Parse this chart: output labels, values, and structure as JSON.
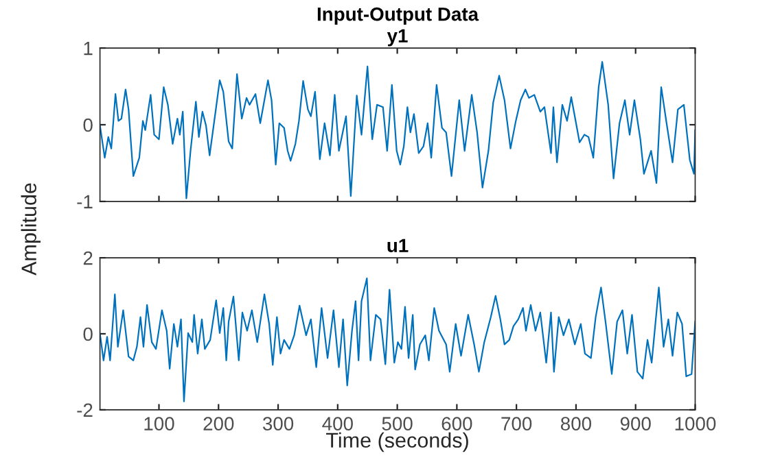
{
  "chart_data": [
    {
      "type": "line",
      "title": "Input-Output Data",
      "subtitle": "y1",
      "ylabel": "Amplitude",
      "xlim": [
        1,
        1000
      ],
      "xticks": [
        100,
        200,
        300,
        400,
        500,
        600,
        700,
        800,
        900,
        1000
      ],
      "ylim": [
        -1,
        1
      ],
      "yticks": [
        -1,
        0,
        1
      ],
      "tick_labels": "y",
      "grid": false,
      "legend": false,
      "series": [
        {
          "color": "#0072bd",
          "x": [
            1,
            9,
            15,
            20,
            27,
            32,
            37,
            44,
            49,
            57,
            67,
            73,
            77,
            86,
            92,
            100,
            108,
            115,
            123,
            131,
            135,
            140,
            146,
            153,
            162,
            167,
            173,
            179,
            185,
            196,
            202,
            208,
            217,
            223,
            231,
            239,
            247,
            252,
            262,
            270,
            283,
            289,
            296,
            302,
            310,
            316,
            321,
            329,
            335,
            342,
            350,
            355,
            362,
            370,
            378,
            387,
            395,
            402,
            414,
            422,
            432,
            440,
            450,
            458,
            466,
            476,
            483,
            491,
            499,
            505,
            511,
            517,
            522,
            528,
            536,
            544,
            551,
            557,
            566,
            575,
            582,
            591,
            604,
            613,
            625,
            634,
            643,
            653,
            661,
            671,
            680,
            690,
            699,
            707,
            715,
            721,
            730,
            740,
            747,
            758,
            762,
            768,
            777,
            785,
            792,
            806,
            814,
            821,
            829,
            838,
            844,
            854,
            863,
            873,
            882,
            890,
            898,
            908,
            914,
            920,
            926,
            935,
            943,
            952,
            962,
            971,
            981,
            991,
            998,
            1000
          ],
          "values": [
            -0.01,
            -0.43,
            -0.16,
            -0.31,
            0.4,
            0.05,
            0.08,
            0.46,
            0.2,
            -0.67,
            -0.43,
            0.05,
            -0.07,
            0.39,
            -0.13,
            -0.19,
            0.49,
            0.26,
            -0.25,
            0.08,
            -0.13,
            0.17,
            -0.96,
            -0.34,
            0.3,
            -0.16,
            0.17,
            -0.01,
            -0.4,
            0.23,
            0.58,
            0.43,
            -0.22,
            -0.31,
            0.66,
            0.08,
            0.35,
            0.26,
            0.4,
            0.02,
            0.58,
            0.32,
            -0.52,
            0.02,
            -0.04,
            -0.34,
            -0.47,
            -0.25,
            0.05,
            0.57,
            0.2,
            0.11,
            0.43,
            -0.45,
            0.02,
            -0.4,
            0.39,
            -0.34,
            0.11,
            -0.93,
            0.38,
            -0.13,
            0.76,
            -0.19,
            0.26,
            0.23,
            -0.34,
            0.52,
            -0.34,
            -0.52,
            -0.28,
            0.23,
            -0.1,
            0.14,
            -0.37,
            -0.28,
            0.02,
            -0.43,
            0.52,
            -0.04,
            -0.1,
            -0.67,
            0.32,
            -0.34,
            0.39,
            -0.1,
            -0.82,
            -0.34,
            0.29,
            0.64,
            0.32,
            -0.31,
            0.05,
            0.32,
            0.46,
            0.35,
            0.39,
            0.17,
            0.23,
            -0.37,
            0.23,
            -0.49,
            0.26,
            0.05,
            0.36,
            -0.23,
            -0.13,
            -0.16,
            -0.43,
            0.49,
            0.82,
            0.26,
            -0.7,
            0.02,
            0.32,
            -0.13,
            0.32,
            -0.19,
            -0.64,
            -0.49,
            -0.34,
            -0.76,
            0.49,
            0.02,
            -0.49,
            0.2,
            0.26,
            -0.46,
            -0.64,
            -0.07
          ]
        }
      ]
    },
    {
      "type": "line",
      "title": "u1",
      "xlabel": "Time (seconds)",
      "xlim": [
        1,
        1000
      ],
      "xticks": [
        100,
        200,
        300,
        400,
        500,
        600,
        700,
        800,
        900,
        1000
      ],
      "ylim": [
        -2,
        2
      ],
      "yticks": [
        -2,
        0,
        2
      ],
      "grid": false,
      "legend": false,
      "series": [
        {
          "color": "#0072bd",
          "x": [
            1,
            7,
            13,
            18,
            26,
            31,
            40,
            49,
            57,
            63,
            69,
            74,
            80,
            88,
            95,
            105,
            113,
            118,
            125,
            131,
            137,
            142,
            149,
            156,
            159,
            165,
            172,
            177,
            186,
            196,
            202,
            208,
            213,
            217,
            225,
            234,
            240,
            248,
            256,
            265,
            277,
            285,
            291,
            298,
            304,
            310,
            319,
            327,
            336,
            347,
            355,
            364,
            373,
            383,
            393,
            402,
            409,
            416,
            424,
            430,
            435,
            440,
            449,
            455,
            464,
            472,
            480,
            487,
            495,
            501,
            507,
            513,
            519,
            526,
            530,
            538,
            547,
            553,
            562,
            570,
            576,
            582,
            588,
            598,
            607,
            619,
            629,
            637,
            646,
            657,
            665,
            673,
            680,
            688,
            695,
            703,
            711,
            716,
            724,
            732,
            740,
            750,
            758,
            763,
            771,
            779,
            788,
            798,
            808,
            815,
            825,
            833,
            842,
            850,
            860,
            869,
            878,
            886,
            894,
            903,
            912,
            920,
            927,
            939,
            947,
            955,
            962,
            970,
            978,
            985,
            994,
            1000
          ],
          "values": [
            0,
            -0.7,
            -0.08,
            -0.7,
            1.04,
            -0.34,
            0.62,
            -0.6,
            -0.7,
            -0.34,
            0.44,
            -0.34,
            0.76,
            -0.22,
            -0.4,
            0.62,
            0.08,
            -0.92,
            0.26,
            -0.34,
            0.38,
            -1.78,
            0.02,
            -0.22,
            0.5,
            -0.52,
            0.38,
            -0.4,
            -0.16,
            0.88,
            0.02,
            0.68,
            -0.7,
            0.32,
            0.98,
            -0.7,
            0.56,
            0.08,
            0.62,
            -0.22,
            1.04,
            0.26,
            -0.82,
            0.44,
            -0.52,
            -0.16,
            -0.4,
            -0.04,
            0.74,
            -0.04,
            0.38,
            -0.88,
            0.68,
            -0.64,
            0.62,
            -0.88,
            0.38,
            -1.36,
            0.08,
            0.86,
            -0.7,
            0.86,
            1.46,
            -0.7,
            0.5,
            0.38,
            -0.8,
            1.16,
            -0.76,
            -0.22,
            -0.4,
            0.71,
            -0.64,
            0.5,
            -0.94,
            -0.28,
            -0.04,
            -0.7,
            0.68,
            0.08,
            -0.1,
            -0.28,
            -1.0,
            0.26,
            -0.58,
            0.5,
            -0.28,
            -1.0,
            -0.22,
            0.44,
            1.0,
            0.38,
            -0.28,
            -0.16,
            0.2,
            0.38,
            0.68,
            0.08,
            0.76,
            0.08,
            0.56,
            -0.76,
            0.56,
            -1.0,
            0.44,
            -0.04,
            0.38,
            -0.28,
            0.26,
            -0.52,
            -0.64,
            0.44,
            1.22,
            0.26,
            -1.06,
            0.32,
            0.62,
            -0.52,
            0.5,
            -1.0,
            -1.18,
            -0.16,
            -0.76,
            1.22,
            -0.34,
            0.38,
            -0.58,
            0.56,
            0.26,
            -1.12,
            -1.06,
            0.32
          ]
        }
      ]
    }
  ]
}
